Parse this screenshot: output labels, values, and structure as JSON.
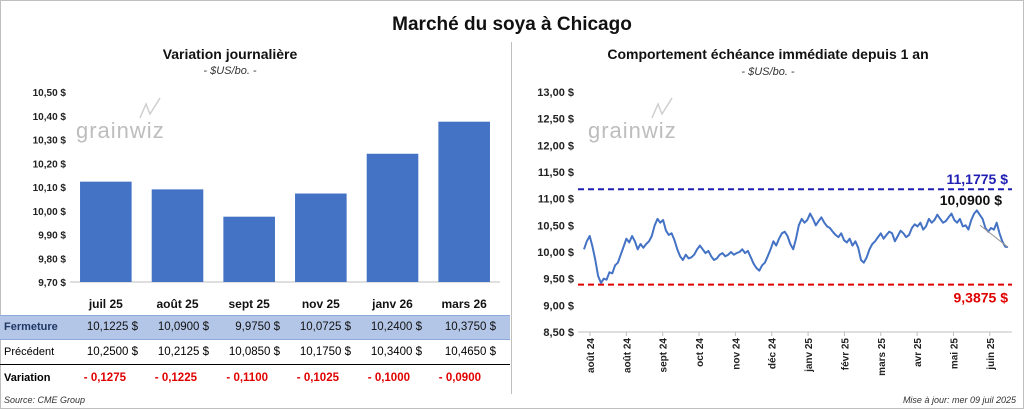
{
  "title": "Marché du soya à Chicago",
  "left": {
    "title": "Variation journalière",
    "subtitle": "- $US/bo. -",
    "logo": "grainwiz"
  },
  "right": {
    "title": "Comportement  échéance immédiate depuis 1 an",
    "subtitle": "- $US/bo. -",
    "logo": "grainwiz"
  },
  "table": {
    "close_label": "Fermeture",
    "prev_label": "Précédent",
    "var_label": "Variation",
    "close": [
      "10,1225  $",
      "10,0900  $",
      "9,9750  $",
      "10,0725  $",
      "10,2400  $",
      "10,3750  $"
    ],
    "prev": [
      "10,2500  $",
      "10,2125  $",
      "10,0850  $",
      "10,1750  $",
      "10,3400  $",
      "10,4650  $"
    ],
    "var": [
      "- 0,1275",
      "- 0,1225",
      "- 0,1100",
      "- 0,1025",
      "- 0,1000",
      "- 0,0900"
    ]
  },
  "footer": {
    "source": "Source: CME Group",
    "updated": "Mise à jour: mer 09 juil 2025"
  },
  "chart_data": [
    {
      "type": "bar",
      "title": "Variation journalière",
      "subtitle": "- $US/bo. -",
      "categories": [
        "juil 25",
        "août 25",
        "sept 25",
        "nov 25",
        "janv 26",
        "mars 26"
      ],
      "values": [
        10.1225,
        10.09,
        9.975,
        10.0725,
        10.24,
        10.375
      ],
      "ylim": [
        9.7,
        10.5
      ],
      "yticks": [
        "9,70 $",
        "9,80 $",
        "9,90 $",
        "10,00 $",
        "10,10 $",
        "10,20 $",
        "10,30 $",
        "10,40 $",
        "10,50 $"
      ],
      "color": "#4472c4",
      "grid": false
    },
    {
      "type": "line",
      "title": "Comportement  échéance immédiate depuis 1 an",
      "subtitle": "- $US/bo. -",
      "ylim": [
        8.5,
        13.0
      ],
      "yticks": [
        "8,50 $",
        "9,00 $",
        "9,50 $",
        "10,00 $",
        "10,50 $",
        "11,00 $",
        "11,50 $",
        "12,00 $",
        "12,50 $",
        "13,00 $"
      ],
      "xticks": [
        "août 24",
        "août 24",
        "sept 24",
        "oct 24",
        "nov 24",
        "déc 24",
        "janv 25",
        "févr 25",
        "mars 25",
        "avr 25",
        "mai 25",
        "juin 25"
      ],
      "color": "#4472c4",
      "values": [
        10.05,
        10.2,
        10.3,
        10.1,
        9.85,
        9.55,
        9.42,
        9.5,
        9.48,
        9.62,
        9.6,
        9.75,
        9.8,
        9.95,
        10.1,
        10.25,
        10.18,
        10.3,
        10.2,
        10.05,
        10.15,
        10.08,
        10.15,
        10.2,
        10.3,
        10.5,
        10.62,
        10.55,
        10.6,
        10.4,
        10.32,
        10.35,
        10.22,
        10.05,
        9.92,
        9.85,
        9.95,
        9.88,
        9.9,
        9.95,
        10.05,
        10.12,
        10.05,
        9.98,
        10.02,
        9.92,
        9.85,
        9.88,
        9.95,
        9.98,
        9.92,
        9.95,
        10.0,
        9.95,
        9.98,
        10.0,
        10.05,
        9.98,
        10.02,
        9.9,
        9.78,
        9.7,
        9.65,
        9.75,
        9.8,
        9.92,
        10.05,
        10.2,
        10.12,
        10.25,
        10.35,
        10.38,
        10.3,
        10.15,
        10.05,
        10.25,
        10.5,
        10.62,
        10.55,
        10.6,
        10.72,
        10.62,
        10.5,
        10.58,
        10.65,
        10.55,
        10.48,
        10.45,
        10.38,
        10.32,
        10.28,
        10.35,
        10.22,
        10.18,
        10.25,
        10.12,
        10.2,
        10.08,
        9.85,
        9.8,
        9.9,
        10.05,
        10.15,
        10.2,
        10.28,
        10.35,
        10.25,
        10.32,
        10.38,
        10.35,
        10.2,
        10.3,
        10.4,
        10.35,
        10.28,
        10.32,
        10.45,
        10.52,
        10.48,
        10.55,
        10.42,
        10.48,
        10.62,
        10.55,
        10.6,
        10.7,
        10.62,
        10.55,
        10.58,
        10.65,
        10.72,
        10.6,
        10.55,
        10.62,
        10.48,
        10.5,
        10.42,
        10.6,
        10.72,
        10.78,
        10.7,
        10.62,
        10.45,
        10.38,
        10.45,
        10.42,
        10.55,
        10.35,
        10.2,
        10.1,
        10.09
      ],
      "lines": [
        {
          "value": 11.1775,
          "label": "11,1775 $",
          "color": "#1f1fb4"
        },
        {
          "value": 9.3875,
          "label": "9,3875 $",
          "color": "#e00000"
        }
      ],
      "last_label": "10,0900 $",
      "grid": false
    }
  ]
}
